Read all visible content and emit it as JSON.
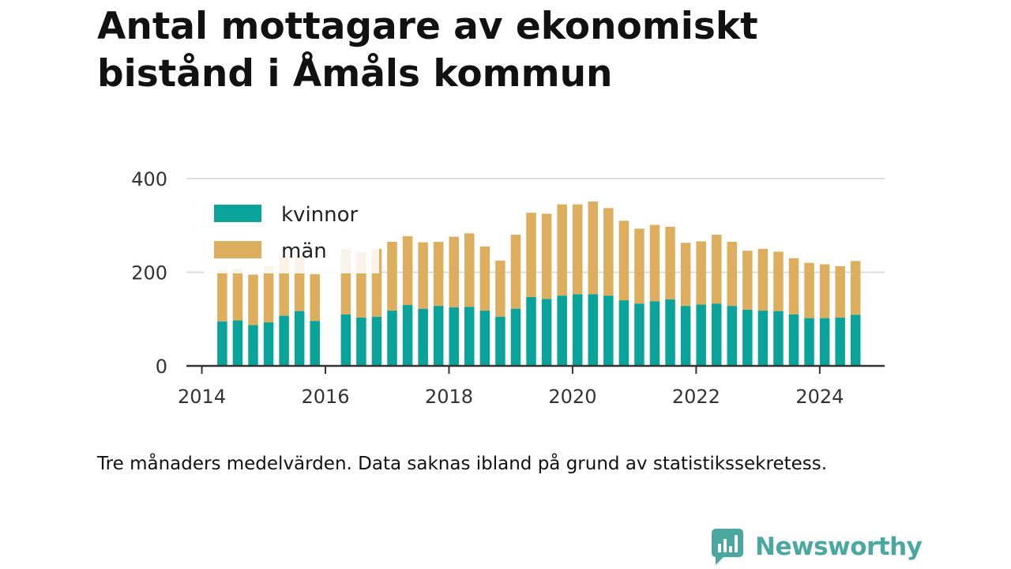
{
  "title": "Antal mottagare av ekonomiskt bistånd i Åmåls kommun",
  "caption": "Tre månaders medelvärden. Data saknas ibland på grund av statistikssekretess.",
  "brand": {
    "name": "Newsworthy",
    "color": "#4aa8a1",
    "icon": "newsworthy-logo-icon"
  },
  "colors": {
    "kvinnor": "#0aa39a",
    "man": "#dcae5e",
    "grid": "#dddddd",
    "axis": "#333333"
  },
  "chart_data": {
    "type": "bar",
    "stacked": true,
    "title": "Antal mottagare av ekonomiskt bistånd i Åmåls kommun",
    "xlabel": "",
    "ylabel": "",
    "ylim": [
      0,
      400
    ],
    "yticks": [
      0,
      200,
      400
    ],
    "xticks": [
      "2014",
      "2016",
      "2018",
      "2020",
      "2022",
      "2024"
    ],
    "xlim": [
      2013.75,
      2025.05
    ],
    "grid": true,
    "legend": "top-left",
    "x": [
      2014.33,
      2014.58,
      2014.83,
      2015.08,
      2015.33,
      2015.58,
      2015.83,
      2016.33,
      2016.58,
      2016.83,
      2017.08,
      2017.33,
      2017.58,
      2017.83,
      2018.08,
      2018.33,
      2018.58,
      2018.83,
      2019.08,
      2019.33,
      2019.58,
      2019.83,
      2020.08,
      2020.33,
      2020.58,
      2020.83,
      2021.08,
      2021.33,
      2021.58,
      2021.83,
      2022.08,
      2022.33,
      2022.58,
      2022.83,
      2023.08,
      2023.33,
      2023.58,
      2023.83,
      2024.08,
      2024.33,
      2024.58
    ],
    "series": [
      {
        "name": "kvinnor",
        "values": [
          95,
          97,
          87,
          93,
          107,
          117,
          96,
          110,
          103,
          105,
          118,
          130,
          122,
          128,
          125,
          126,
          118,
          105,
          122,
          147,
          143,
          150,
          153,
          153,
          150,
          140,
          133,
          138,
          142,
          128,
          131,
          133,
          128,
          120,
          118,
          117,
          110,
          102,
          102,
          103,
          109
        ]
      },
      {
        "name": "män",
        "values": [
          110,
          110,
          108,
          120,
          127,
          120,
          100,
          140,
          140,
          145,
          147,
          147,
          142,
          137,
          151,
          157,
          137,
          120,
          158,
          180,
          182,
          195,
          192,
          198,
          187,
          170,
          160,
          163,
          155,
          135,
          135,
          147,
          137,
          126,
          132,
          127,
          120,
          118,
          115,
          110,
          115
        ]
      }
    ]
  }
}
